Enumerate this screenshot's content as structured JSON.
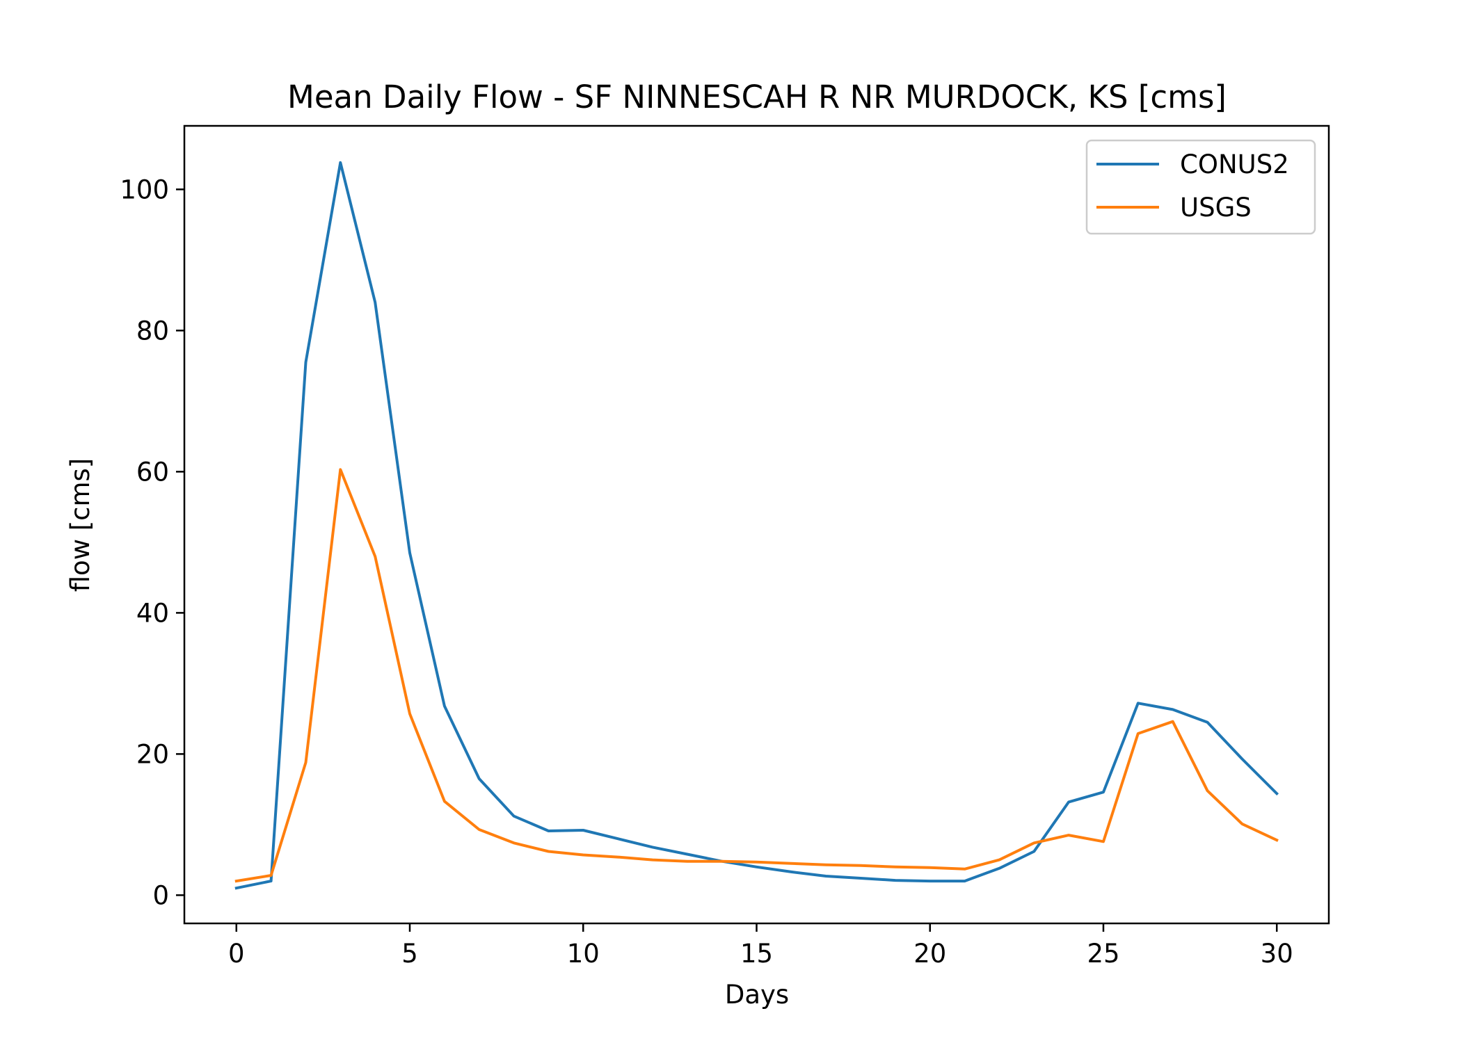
{
  "chart_data": {
    "type": "line",
    "title": "Mean Daily Flow - SF NINNESCAH R NR MURDOCK, KS [cms]",
    "xlabel": "Days",
    "ylabel": "flow [cms]",
    "xlim": [
      -1.5,
      31.5
    ],
    "ylim": [
      -4,
      109
    ],
    "xticks": [
      0,
      5,
      10,
      15,
      20,
      25,
      30
    ],
    "yticks": [
      0,
      20,
      40,
      60,
      80,
      100
    ],
    "grid": false,
    "legend": "top-right",
    "x": [
      0,
      1,
      2,
      3,
      4,
      5,
      6,
      7,
      8,
      9,
      10,
      11,
      12,
      13,
      14,
      15,
      16,
      17,
      18,
      19,
      20,
      21,
      22,
      23,
      24,
      25,
      26,
      27,
      28,
      29,
      30
    ],
    "series": [
      {
        "name": "CONUS2",
        "color": "#1f77b4",
        "values": [
          1.0,
          2.0,
          75.5,
          103.8,
          84.0,
          48.5,
          26.8,
          16.5,
          11.2,
          9.1,
          9.2,
          8.0,
          6.8,
          5.8,
          4.8,
          4.0,
          3.3,
          2.7,
          2.4,
          2.1,
          2.0,
          2.0,
          3.8,
          6.2,
          13.2,
          14.6,
          27.2,
          26.3,
          24.5,
          19.3,
          14.4
        ]
      },
      {
        "name": "USGS",
        "color": "#ff7f0e",
        "values": [
          2.0,
          2.8,
          18.8,
          60.3,
          48.0,
          25.7,
          13.3,
          9.3,
          7.4,
          6.2,
          5.7,
          5.4,
          5.0,
          4.8,
          4.8,
          4.7,
          4.5,
          4.3,
          4.2,
          4.0,
          3.9,
          3.7,
          5.0,
          7.4,
          8.5,
          7.6,
          22.9,
          24.6,
          14.8,
          10.1,
          7.8
        ]
      }
    ]
  }
}
